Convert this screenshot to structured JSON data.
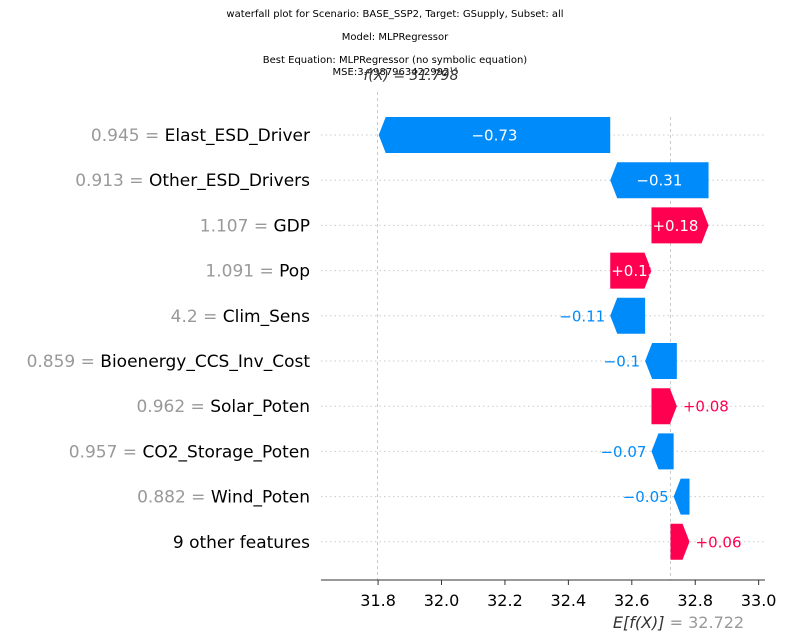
{
  "title_lines": [
    "waterfall plot for Scenario: BASE_SSP2, Target: GSupply, Subset: all",
    "Model: MLPRegressor",
    "Best Equation: MLPRegressor (no symbolic equation)",
    "MSE:3.4987963422992¹⁴"
  ],
  "fx_label": "f(X) = 31.798",
  "ex_label_main": "E[f(X)]",
  "ex_label_value": "= 32.722",
  "colors": {
    "positive": "#ff0051",
    "negative": "#008bfb",
    "feature_value": "#999999",
    "grid": "#cccccc"
  },
  "chart_data": {
    "type": "waterfall",
    "base_value": 32.722,
    "output_value": 31.798,
    "xlim": [
      31.62,
      33.02
    ],
    "x_ticks": [
      31.8,
      32.0,
      32.2,
      32.4,
      32.6,
      32.8,
      33.0
    ],
    "x_tick_labels": [
      "31.8",
      "32.0",
      "32.2",
      "32.4",
      "32.6",
      "32.8",
      "33.0"
    ],
    "features": [
      {
        "value": "0.945",
        "name": "Elast_ESD_Driver",
        "shap": -0.73,
        "label": "−0.73"
      },
      {
        "value": "0.913",
        "name": "Other_ESD_Drivers",
        "shap": -0.31,
        "label": "−0.31"
      },
      {
        "value": "1.107",
        "name": "GDP",
        "shap": 0.18,
        "label": "+0.18"
      },
      {
        "value": "1.091",
        "name": "Pop",
        "shap": 0.13,
        "label": "+0.13"
      },
      {
        "value": "4.2",
        "name": "Clim_Sens",
        "shap": -0.11,
        "label": "−0.11"
      },
      {
        "value": "0.859",
        "name": "Bioenergy_CCS_Inv_Cost",
        "shap": -0.1,
        "label": "−0.1"
      },
      {
        "value": "0.962",
        "name": "Solar_Poten",
        "shap": 0.08,
        "label": "+0.08"
      },
      {
        "value": "0.957",
        "name": "CO2_Storage_Poten",
        "shap": -0.07,
        "label": "−0.07"
      },
      {
        "value": "0.882",
        "name": "Wind_Poten",
        "shap": -0.05,
        "label": "−0.05"
      },
      {
        "value": "",
        "name": "9 other features",
        "shap": 0.06,
        "label": "+0.06"
      }
    ]
  }
}
